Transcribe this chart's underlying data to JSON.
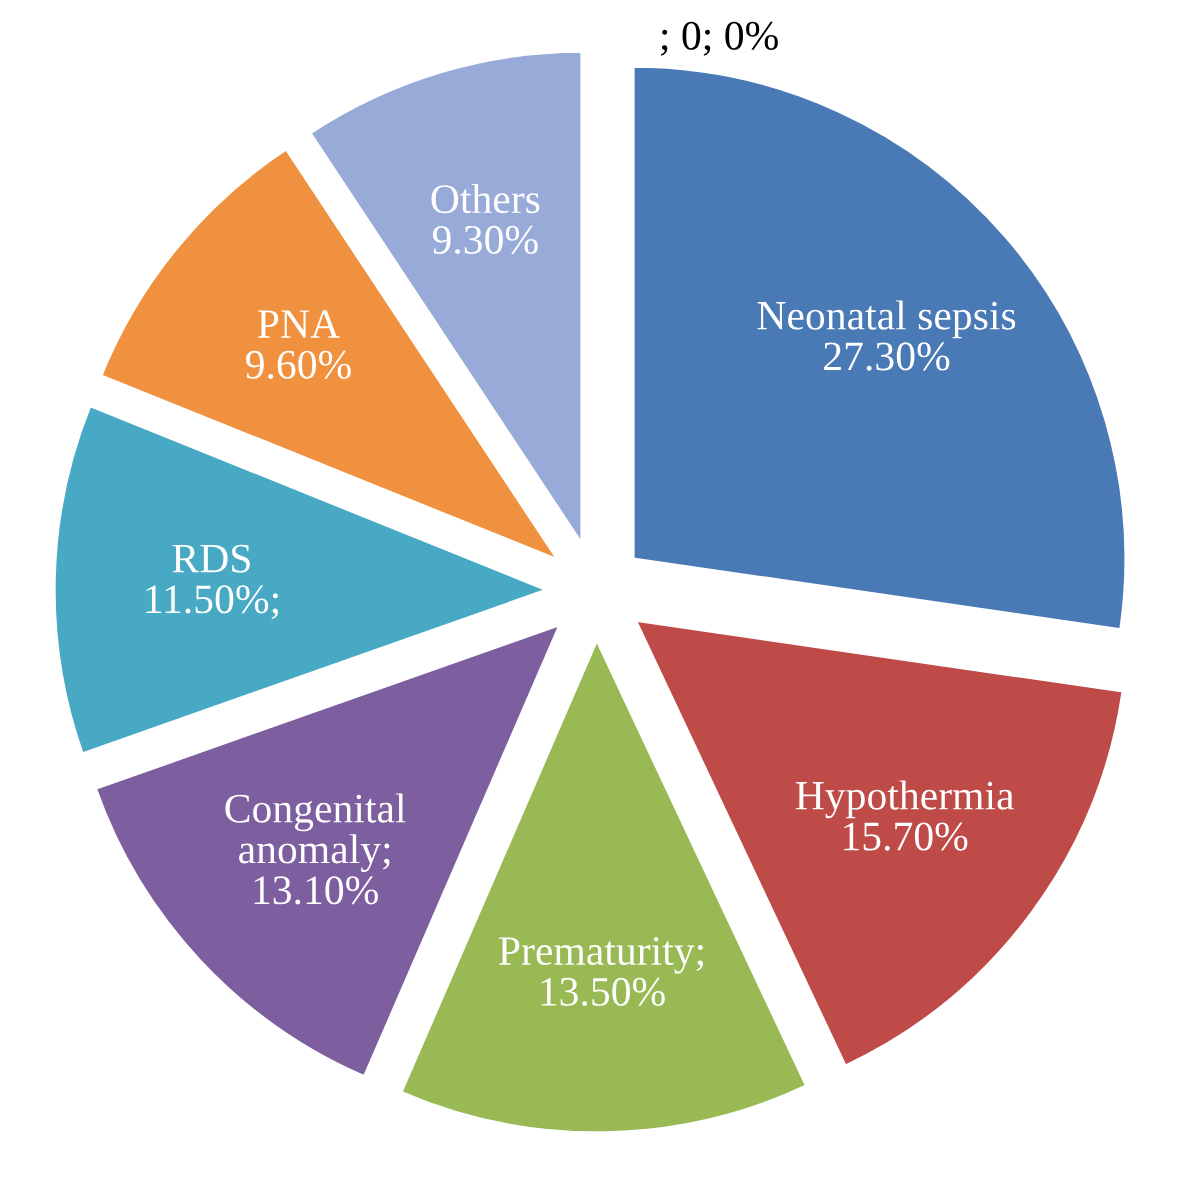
{
  "chart_data": {
    "type": "pie",
    "categories": [
      "Neonatal sepsis",
      "Hypothermia",
      "Prematurity",
      "Congenital anomaly",
      "RDS",
      "PNA",
      "Others",
      null
    ],
    "values": [
      27.3,
      15.7,
      13.5,
      13.1,
      11.5,
      9.6,
      9.3,
      0
    ],
    "value_labels": [
      "27.30%",
      "15.70%",
      ";13.50%",
      ";13.10%",
      "11.50%;",
      "9.60%",
      "9.30%",
      "; 0; 0%"
    ],
    "colors": [
      "#4a7ab6",
      "#be4b48",
      "#98b954",
      "#7d5fa0",
      "#48a9c5",
      "#f0913f",
      "#98aad8",
      "#e07a7a"
    ],
    "legend": false
  }
}
